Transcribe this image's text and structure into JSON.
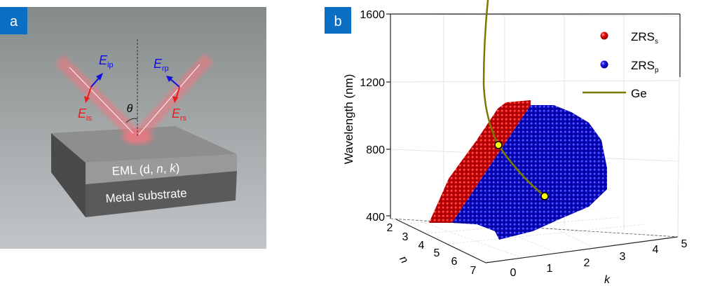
{
  "panel_a": {
    "label": "a",
    "e_ip": {
      "main": "E",
      "sub": "ip"
    },
    "e_is": {
      "main": "E",
      "sub": "is"
    },
    "e_rp": {
      "main": "E",
      "sub": "rp"
    },
    "e_rs": {
      "main": "E",
      "sub": "rs"
    },
    "theta": "θ",
    "eml_label": "EML (d, ",
    "eml_n": "n",
    "eml_sep": ", ",
    "eml_k": "k",
    "eml_close": ")",
    "substrate_label": "Metal substrate",
    "colors": {
      "s_pol": "#e81e1e",
      "p_pol": "#1010e0",
      "beam": "#f07880"
    }
  },
  "panel_b": {
    "label": "b",
    "y_axis_label": "Wavelength (nm)",
    "y_ticks": [
      "1600",
      "1200",
      "800",
      "400"
    ],
    "n_axis_label": "n",
    "n_ticks": [
      "2",
      "3",
      "4",
      "5",
      "6",
      "7"
    ],
    "k_axis_label": "k",
    "k_ticks": [
      "0",
      "1",
      "2",
      "3",
      "4",
      "5"
    ],
    "legend": [
      {
        "main": "ZRS",
        "sub": "s",
        "color": "#e00000",
        "marker": "sphere"
      },
      {
        "main": "ZRS",
        "sub": "p",
        "color": "#0000e0",
        "marker": "sphere"
      },
      {
        "main": "Ge",
        "sub": "",
        "color": "#7a7a00",
        "marker": "line"
      }
    ],
    "marker_color": "#ffff00"
  }
}
